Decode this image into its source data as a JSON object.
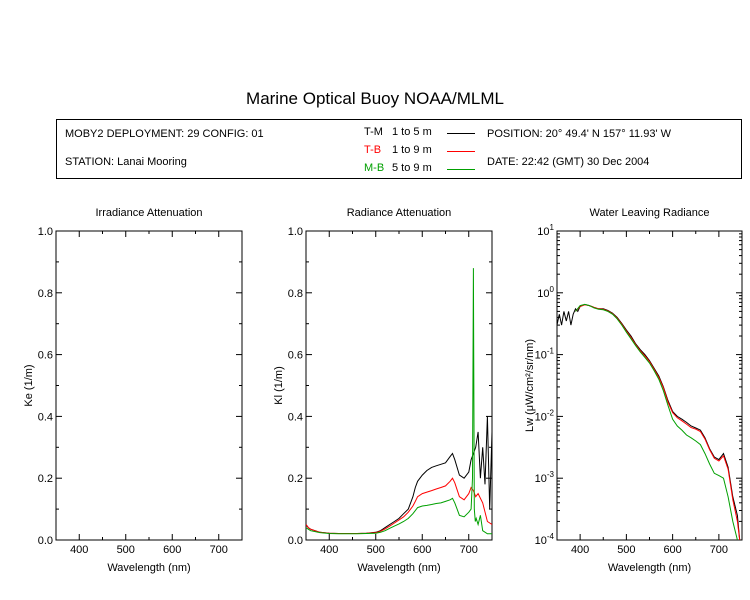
{
  "title": "Marine Optical Buoy NOAA/MLML",
  "info": {
    "deployment": "MOBY2 DEPLOYMENT: 29 CONFIG: 01",
    "station": "STATION: Lanai Mooring",
    "position": "POSITION: 20° 49.4' N   157° 11.93' W",
    "date": "DATE: 22:42 (GMT) 30 Dec 2004"
  },
  "legend": [
    {
      "id": "T-M",
      "range": "1 to 5  m",
      "color": "#000000"
    },
    {
      "id": "T-B",
      "range": "1 to 9  m",
      "color": "#ff0000"
    },
    {
      "id": "M-B",
      "range": "5 to 9  m",
      "color": "#00a000"
    }
  ],
  "chart_data": [
    {
      "type": "line",
      "title": "Irradiance Attenuation",
      "xlabel": "Wavelength (nm)",
      "ylabel": "Ke  (1/m)",
      "xlim": [
        350,
        750
      ],
      "ylim": [
        0,
        1
      ],
      "xticks": [
        400,
        500,
        600,
        700
      ],
      "yticks": [
        "0.0",
        "0.2",
        "0.4",
        "0.6",
        "0.8",
        "1.0"
      ],
      "series": []
    },
    {
      "type": "line",
      "title": "Radiance Attenuation",
      "xlabel": "Wavelength (nm)",
      "ylabel": "Kl  (1/m)",
      "xlim": [
        350,
        750
      ],
      "ylim": [
        0,
        1
      ],
      "xticks": [
        400,
        500,
        600,
        700
      ],
      "yticks": [
        "0.0",
        "0.2",
        "0.4",
        "0.6",
        "0.8",
        "1.0"
      ],
      "series": [
        {
          "name": "T-M",
          "color": "#000000",
          "x": [
            350,
            355,
            360,
            380,
            400,
            420,
            440,
            460,
            480,
            500,
            510,
            520,
            530,
            540,
            550,
            560,
            570,
            580,
            585,
            590,
            600,
            610,
            620,
            630,
            640,
            650,
            660,
            665,
            670,
            680,
            690,
            700,
            705,
            710,
            715,
            720,
            725,
            730,
            735,
            740,
            745,
            750
          ],
          "y": [
            0.05,
            0.04,
            0.035,
            0.025,
            0.022,
            0.021,
            0.021,
            0.021,
            0.022,
            0.025,
            0.03,
            0.04,
            0.05,
            0.06,
            0.07,
            0.085,
            0.1,
            0.14,
            0.17,
            0.19,
            0.21,
            0.225,
            0.235,
            0.24,
            0.245,
            0.25,
            0.27,
            0.28,
            0.26,
            0.21,
            0.2,
            0.22,
            0.26,
            0.28,
            0.3,
            0.35,
            0.2,
            0.3,
            0.18,
            0.4,
            0.1,
            0.35
          ]
        },
        {
          "name": "T-B",
          "color": "#ff0000",
          "x": [
            350,
            355,
            360,
            380,
            400,
            420,
            440,
            460,
            480,
            500,
            510,
            520,
            530,
            540,
            550,
            560,
            570,
            580,
            585,
            590,
            600,
            610,
            620,
            630,
            640,
            650,
            660,
            665,
            670,
            680,
            690,
            700,
            705,
            710,
            715,
            720,
            730,
            740,
            750
          ],
          "y": [
            0.05,
            0.04,
            0.035,
            0.025,
            0.022,
            0.021,
            0.021,
            0.021,
            0.022,
            0.024,
            0.028,
            0.036,
            0.045,
            0.055,
            0.065,
            0.075,
            0.09,
            0.11,
            0.125,
            0.14,
            0.15,
            0.155,
            0.16,
            0.165,
            0.17,
            0.175,
            0.19,
            0.2,
            0.185,
            0.14,
            0.13,
            0.15,
            0.17,
            0.16,
            0.14,
            0.15,
            0.12,
            0.06,
            0.05
          ]
        },
        {
          "name": "M-B",
          "color": "#00a000",
          "x": [
            350,
            355,
            360,
            380,
            400,
            420,
            440,
            460,
            480,
            500,
            510,
            520,
            530,
            540,
            550,
            560,
            570,
            580,
            585,
            590,
            600,
            610,
            620,
            630,
            640,
            650,
            660,
            665,
            670,
            680,
            690,
            700,
            705,
            708,
            710,
            711,
            712,
            714,
            716,
            720,
            725,
            730,
            740,
            750
          ],
          "y": [
            0.04,
            0.035,
            0.03,
            0.024,
            0.021,
            0.02,
            0.02,
            0.02,
            0.021,
            0.022,
            0.025,
            0.03,
            0.038,
            0.045,
            0.052,
            0.06,
            0.07,
            0.085,
            0.095,
            0.105,
            0.11,
            0.112,
            0.115,
            0.118,
            0.12,
            0.125,
            0.13,
            0.135,
            0.12,
            0.08,
            0.075,
            0.09,
            0.1,
            0.2,
            0.88,
            0.45,
            0.1,
            0.06,
            0.07,
            0.05,
            0.08,
            0.03,
            0.02,
            0.02
          ]
        }
      ]
    },
    {
      "type": "line",
      "title": "Water Leaving Radiance",
      "xlabel": "Wavelength (nm)",
      "ylabel": "Lw  (μW/cm²/sr/nm)",
      "yscale": "log",
      "xlim": [
        350,
        750
      ],
      "ylim": [
        0.0001,
        10
      ],
      "xticks": [
        400,
        500,
        600,
        700
      ],
      "ytick_mantissa": "10",
      "ytick_exponents": [
        "1",
        "0",
        "-1",
        "-2",
        "-3",
        "-4"
      ],
      "series": [
        {
          "name": "T-M",
          "color": "#000000",
          "x": [
            350,
            355,
            360,
            365,
            370,
            375,
            380,
            385,
            390,
            395,
            400,
            410,
            420,
            430,
            440,
            450,
            460,
            470,
            480,
            490,
            500,
            510,
            520,
            530,
            540,
            550,
            560,
            570,
            580,
            590,
            600,
            610,
            620,
            630,
            640,
            650,
            660,
            670,
            680,
            690,
            700,
            710,
            720,
            730,
            740,
            745
          ],
          "y": [
            0.3,
            0.45,
            0.3,
            0.5,
            0.35,
            0.5,
            0.3,
            0.45,
            0.55,
            0.5,
            0.6,
            0.65,
            0.62,
            0.58,
            0.55,
            0.55,
            0.52,
            0.47,
            0.4,
            0.32,
            0.25,
            0.2,
            0.15,
            0.12,
            0.1,
            0.08,
            0.06,
            0.045,
            0.03,
            0.018,
            0.012,
            0.01,
            0.009,
            0.008,
            0.007,
            0.0065,
            0.006,
            0.0045,
            0.003,
            0.0022,
            0.002,
            0.0025,
            0.0015,
            0.0005,
            0.00025,
            0.0001
          ]
        },
        {
          "name": "T-B",
          "color": "#ff0000",
          "x": [
            390,
            400,
            410,
            420,
            430,
            440,
            450,
            460,
            470,
            480,
            490,
            500,
            510,
            520,
            530,
            540,
            550,
            560,
            570,
            580,
            590,
            600,
            610,
            620,
            630,
            640,
            650,
            660,
            670,
            680,
            690,
            700,
            710,
            720,
            730,
            740,
            745
          ],
          "y": [
            0.5,
            0.6,
            0.64,
            0.62,
            0.58,
            0.55,
            0.54,
            0.51,
            0.46,
            0.39,
            0.31,
            0.24,
            0.19,
            0.145,
            0.115,
            0.095,
            0.077,
            0.058,
            0.043,
            0.029,
            0.017,
            0.0115,
            0.0095,
            0.0085,
            0.0075,
            0.0066,
            0.0062,
            0.0057,
            0.0043,
            0.0029,
            0.0021,
            0.0019,
            0.0023,
            0.0014,
            0.00045,
            0.0002,
            0.0001
          ]
        },
        {
          "name": "M-B",
          "color": "#00a000",
          "x": [
            390,
            400,
            410,
            420,
            430,
            440,
            450,
            460,
            470,
            480,
            490,
            500,
            510,
            520,
            530,
            540,
            550,
            560,
            570,
            580,
            590,
            600,
            610,
            620,
            630,
            640,
            650,
            660,
            670,
            680,
            690,
            700,
            710,
            720,
            730,
            740
          ],
          "y": [
            0.5,
            0.62,
            0.65,
            0.62,
            0.57,
            0.54,
            0.53,
            0.5,
            0.45,
            0.38,
            0.3,
            0.23,
            0.18,
            0.14,
            0.11,
            0.09,
            0.073,
            0.055,
            0.04,
            0.026,
            0.015,
            0.009,
            0.007,
            0.006,
            0.005,
            0.0045,
            0.004,
            0.0035,
            0.0025,
            0.0017,
            0.0012,
            0.0011,
            0.001,
            0.0005,
            0.0002,
            0.0001
          ]
        }
      ]
    }
  ]
}
